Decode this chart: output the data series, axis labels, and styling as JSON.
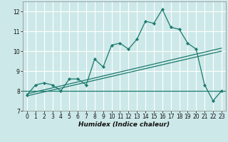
{
  "xlabel": "Humidex (Indice chaleur)",
  "bg_color": "#cde8e8",
  "grid_color": "#ffffff",
  "line_color": "#1a7a6e",
  "x_values": [
    0,
    1,
    2,
    3,
    4,
    5,
    6,
    7,
    8,
    9,
    10,
    11,
    12,
    13,
    14,
    15,
    16,
    17,
    18,
    19,
    20,
    21,
    22,
    23
  ],
  "y_main": [
    7.8,
    8.3,
    8.4,
    8.3,
    8.0,
    8.6,
    8.6,
    8.3,
    9.6,
    9.2,
    10.3,
    10.4,
    10.1,
    10.6,
    11.5,
    11.4,
    12.1,
    11.2,
    11.1,
    10.4,
    10.1,
    8.3,
    7.5,
    8.0
  ],
  "hline_y": 8.0,
  "trend1": [
    7.75,
    10.0
  ],
  "trend2": [
    7.85,
    10.15
  ],
  "ylim": [
    7.0,
    12.5
  ],
  "xlim": [
    -0.5,
    23.5
  ],
  "yticks": [
    7,
    8,
    9,
    10,
    11,
    12
  ],
  "xticks": [
    0,
    1,
    2,
    3,
    4,
    5,
    6,
    7,
    8,
    9,
    10,
    11,
    12,
    13,
    14,
    15,
    16,
    17,
    18,
    19,
    20,
    21,
    22,
    23
  ]
}
